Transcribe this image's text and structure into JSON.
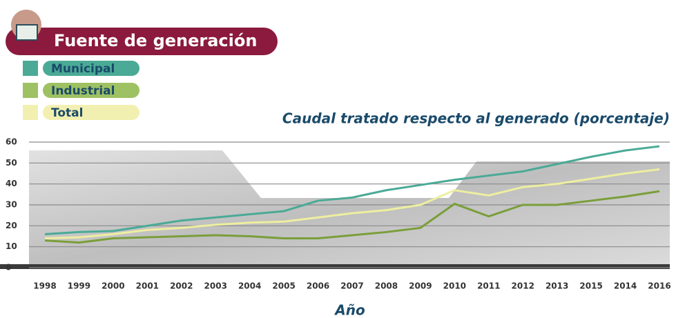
{
  "header": {
    "title": "Fuente de generación"
  },
  "chart_data": {
    "type": "line",
    "title": "Caudal tratado respecto al generado (porcentaje)",
    "x_label": "Año",
    "categories": [
      "1998",
      "1999",
      "2000",
      "2001",
      "2002",
      "2003",
      "2004",
      "2005",
      "2006",
      "2007",
      "2008",
      "2009",
      "2010",
      "2011",
      "2012",
      "2013",
      "2015",
      "2014",
      "2016"
    ],
    "series": [
      {
        "name": "Municipal",
        "color": "#4aaa96",
        "legend_text_color": "#1a4a6a",
        "values": [
          16,
          17,
          17.5,
          20,
          22.5,
          24,
          25.5,
          27,
          32,
          33.5,
          37,
          39.5,
          42,
          44,
          46,
          49.5,
          53,
          56,
          58
        ]
      },
      {
        "name": "Industrial",
        "color": "#7a9e3a",
        "legend_box_color": "#9ec163",
        "legend_text_color": "#1a4a6a",
        "values": [
          13,
          12,
          14,
          14.5,
          15,
          15.5,
          15,
          14,
          14,
          15.5,
          17,
          19,
          30.5,
          24.5,
          30,
          30,
          32,
          34,
          36.5
        ]
      },
      {
        "name": "Total",
        "color": "#eeeea0",
        "legend_box_color": "#f2f0b0",
        "legend_text_color": "#1a4a6a",
        "values": [
          14,
          14.5,
          16,
          18,
          19,
          20.5,
          21.5,
          22,
          24,
          26,
          27.5,
          30,
          37,
          34.5,
          38.5,
          40,
          42.5,
          45,
          47
        ]
      }
    ],
    "ylim": [
      0,
      60
    ],
    "yticks": [
      0,
      10,
      20,
      30,
      40,
      50,
      60
    ],
    "grid": true
  }
}
